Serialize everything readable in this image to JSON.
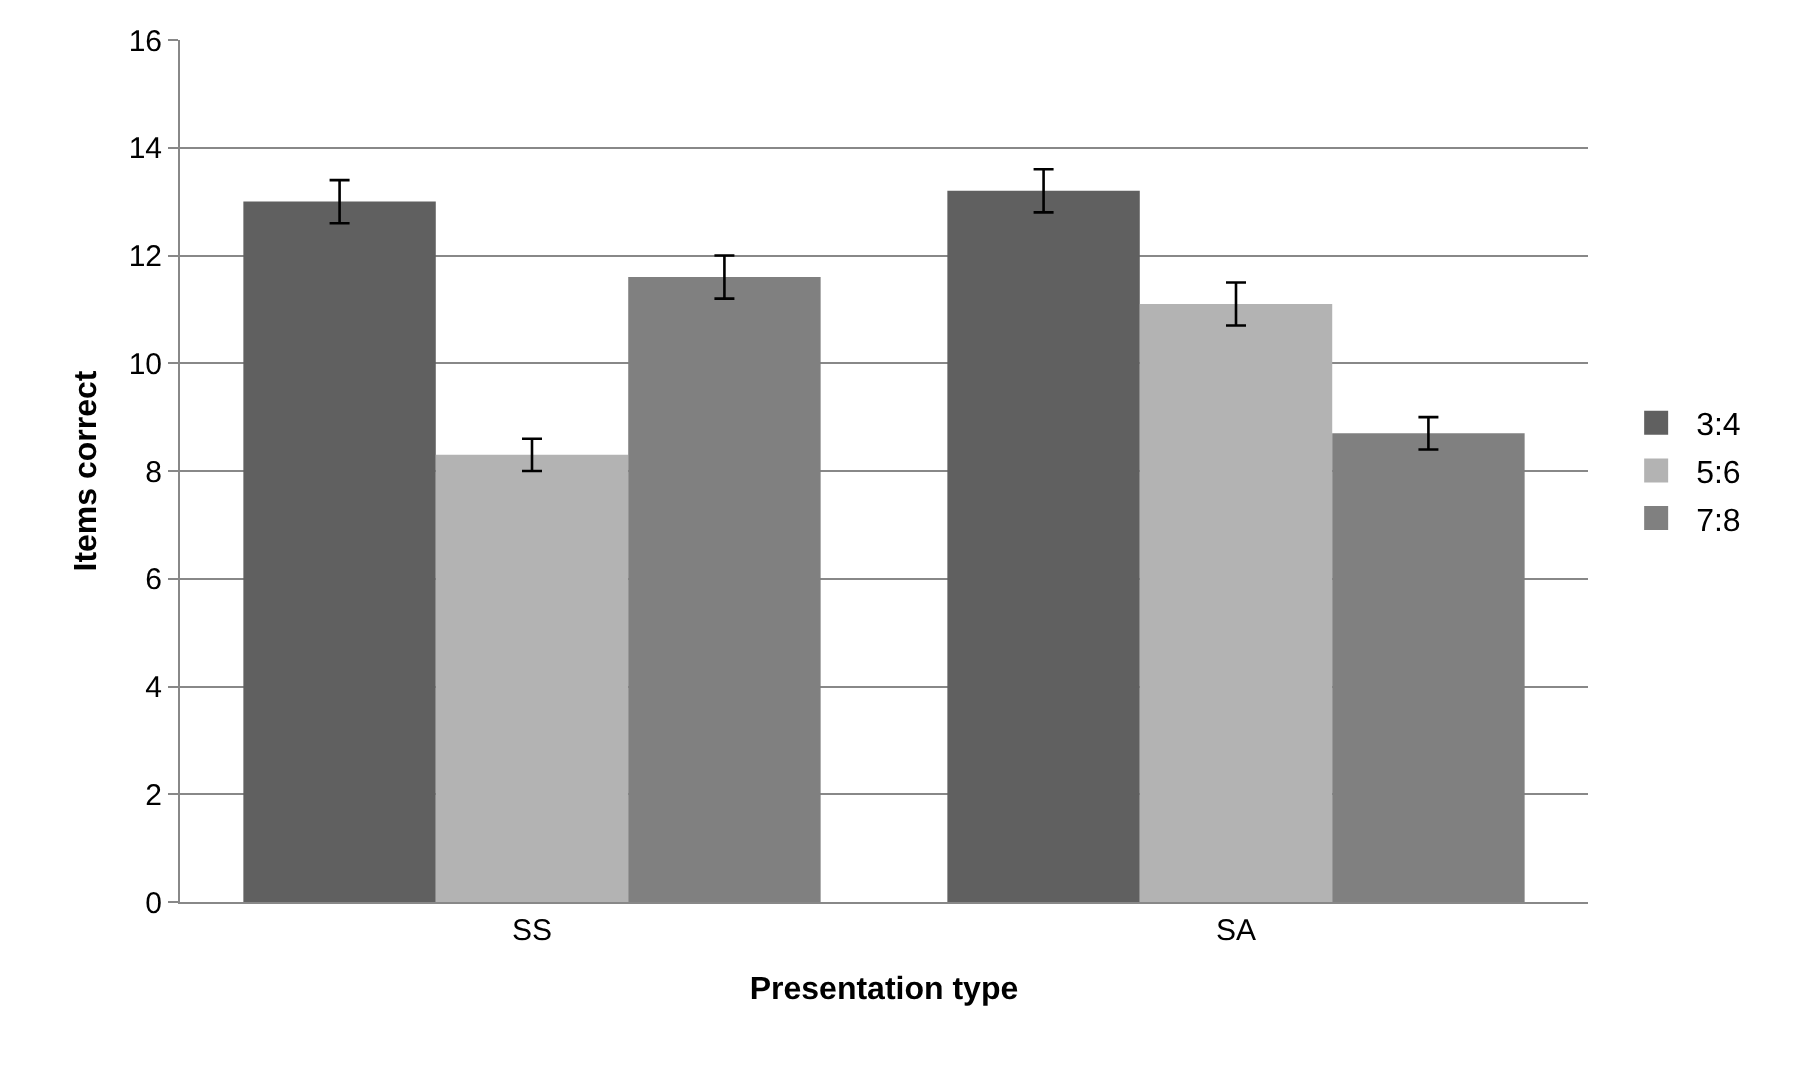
{
  "chart_data": {
    "type": "bar",
    "xlabel": "Presentation type",
    "ylabel": "Items correct",
    "categories": [
      "SS",
      "SA"
    ],
    "series": [
      {
        "name": "3:4",
        "color": "#606060",
        "values": [
          13.0,
          13.2
        ],
        "errors": [
          0.4,
          0.4
        ]
      },
      {
        "name": "5:6",
        "color": "#b3b3b3",
        "values": [
          8.3,
          11.1
        ],
        "errors": [
          0.3,
          0.4
        ]
      },
      {
        "name": "7:8",
        "color": "#808080",
        "values": [
          11.6,
          8.7
        ],
        "errors": [
          0.4,
          0.3
        ]
      }
    ],
    "ylim": [
      0,
      16
    ],
    "yticks": [
      0,
      2,
      4,
      6,
      8,
      10,
      12,
      14,
      16
    ],
    "grid": "y",
    "legend": "right"
  }
}
